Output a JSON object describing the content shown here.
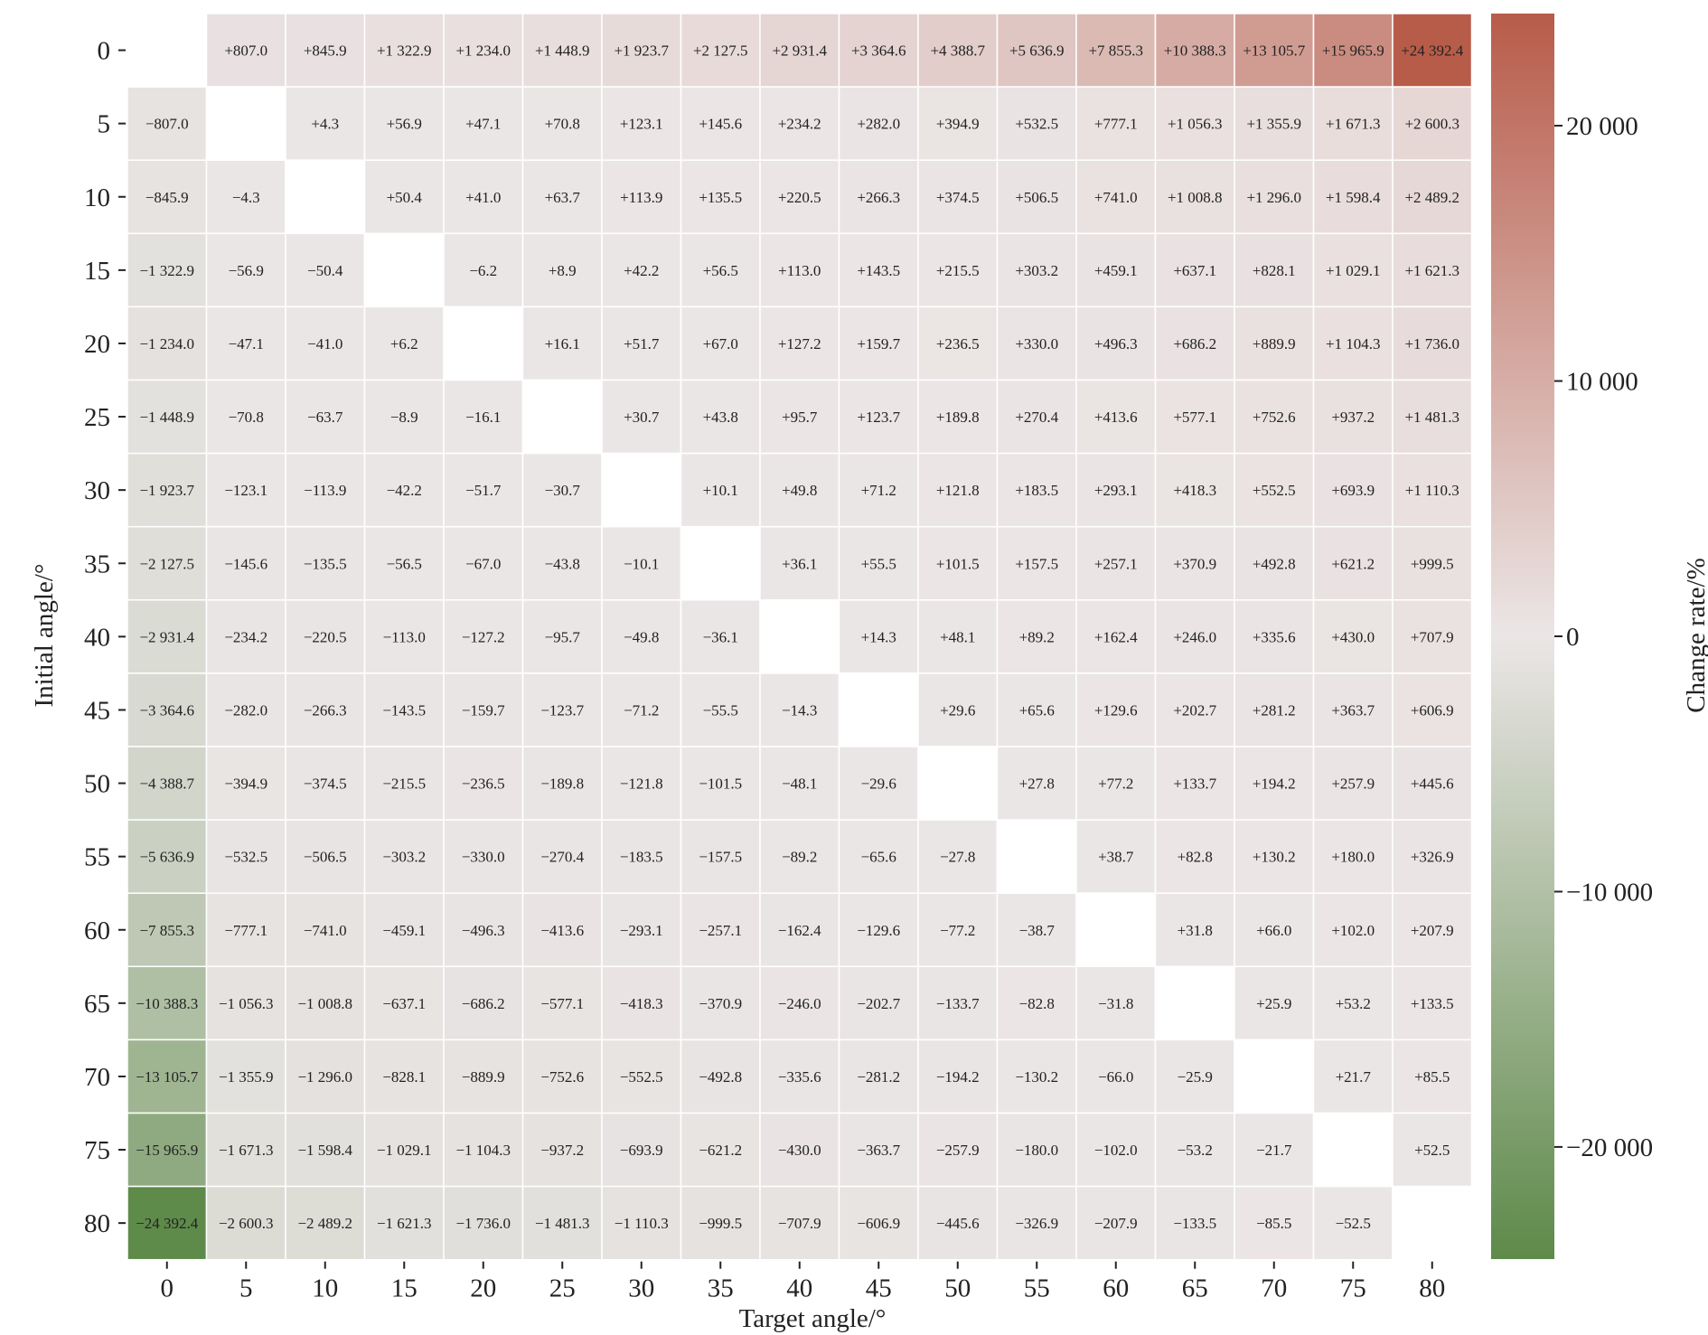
{
  "chart_data": {
    "type": "heatmap",
    "title": "",
    "xlabel": "Target angle/°",
    "ylabel": "Initial angle/°",
    "colorbar_label": "Change rate/%",
    "x_categories": [
      "0",
      "5",
      "10",
      "15",
      "20",
      "25",
      "30",
      "35",
      "40",
      "45",
      "50",
      "55",
      "60",
      "65",
      "70",
      "75",
      "80"
    ],
    "y_categories": [
      "0",
      "5",
      "10",
      "15",
      "20",
      "25",
      "30",
      "35",
      "40",
      "45",
      "50",
      "55",
      "60",
      "65",
      "70",
      "75",
      "80"
    ],
    "colorbar_ticks": [
      "20 000",
      "10 000",
      "0",
      "−10 000",
      "−20 000"
    ],
    "colorbar_tick_values": [
      20000,
      10000,
      0,
      -10000,
      -20000
    ],
    "vmin": -24392.4,
    "vmax": 24392.4,
    "colors": {
      "negative": "#5e8a4a",
      "neutral": "#ebe6e6",
      "positive": "#b85c4a"
    },
    "labels": [
      [
        "",
        "+807.0",
        "+845.9",
        "+1 322.9",
        "+1 234.0",
        "+1 448.9",
        "+1 923.7",
        "+2 127.5",
        "+2 931.4",
        "+3 364.6",
        "+4 388.7",
        "+5 636.9",
        "+7 855.3",
        "+10 388.3",
        "+13 105.7",
        "+15 965.9",
        "+24 392.4"
      ],
      [
        "−807.0",
        "",
        "+4.3",
        "+56.9",
        "+47.1",
        "+70.8",
        "+123.1",
        "+145.6",
        "+234.2",
        "+282.0",
        "+394.9",
        "+532.5",
        "+777.1",
        "+1 056.3",
        "+1 355.9",
        "+1 671.3",
        "+2 600.3"
      ],
      [
        "−845.9",
        "−4.3",
        "",
        "+50.4",
        "+41.0",
        "+63.7",
        "+113.9",
        "+135.5",
        "+220.5",
        "+266.3",
        "+374.5",
        "+506.5",
        "+741.0",
        "+1 008.8",
        "+1 296.0",
        "+1 598.4",
        "+2 489.2"
      ],
      [
        "−1 322.9",
        "−56.9",
        "−50.4",
        "",
        "−6.2",
        "+8.9",
        "+42.2",
        "+56.5",
        "+113.0",
        "+143.5",
        "+215.5",
        "+303.2",
        "+459.1",
        "+637.1",
        "+828.1",
        "+1 029.1",
        "+1 621.3"
      ],
      [
        "−1 234.0",
        "−47.1",
        "−41.0",
        "+6.2",
        "",
        "+16.1",
        "+51.7",
        "+67.0",
        "+127.2",
        "+159.7",
        "+236.5",
        "+330.0",
        "+496.3",
        "+686.2",
        "+889.9",
        "+1 104.3",
        "+1 736.0"
      ],
      [
        "−1 448.9",
        "−70.8",
        "−63.7",
        "−8.9",
        "−16.1",
        "",
        "+30.7",
        "+43.8",
        "+95.7",
        "+123.7",
        "+189.8",
        "+270.4",
        "+413.6",
        "+577.1",
        "+752.6",
        "+937.2",
        "+1 481.3"
      ],
      [
        "−1 923.7",
        "−123.1",
        "−113.9",
        "−42.2",
        "−51.7",
        "−30.7",
        "",
        "+10.1",
        "+49.8",
        "+71.2",
        "+121.8",
        "+183.5",
        "+293.1",
        "+418.3",
        "+552.5",
        "+693.9",
        "+1 110.3"
      ],
      [
        "−2 127.5",
        "−145.6",
        "−135.5",
        "−56.5",
        "−67.0",
        "−43.8",
        "−10.1",
        "",
        "+36.1",
        "+55.5",
        "+101.5",
        "+157.5",
        "+257.1",
        "+370.9",
        "+492.8",
        "+621.2",
        "+999.5"
      ],
      [
        "−2 931.4",
        "−234.2",
        "−220.5",
        "−113.0",
        "−127.2",
        "−95.7",
        "−49.8",
        "−36.1",
        "",
        "+14.3",
        "+48.1",
        "+89.2",
        "+162.4",
        "+246.0",
        "+335.6",
        "+430.0",
        "+707.9"
      ],
      [
        "−3 364.6",
        "−282.0",
        "−266.3",
        "−143.5",
        "−159.7",
        "−123.7",
        "−71.2",
        "−55.5",
        "−14.3",
        "",
        "+29.6",
        "+65.6",
        "+129.6",
        "+202.7",
        "+281.2",
        "+363.7",
        "+606.9"
      ],
      [
        "−4 388.7",
        "−394.9",
        "−374.5",
        "−215.5",
        "−236.5",
        "−189.8",
        "−121.8",
        "−101.5",
        "−48.1",
        "−29.6",
        "",
        "+27.8",
        "+77.2",
        "+133.7",
        "+194.2",
        "+257.9",
        "+445.6"
      ],
      [
        "−5 636.9",
        "−532.5",
        "−506.5",
        "−303.2",
        "−330.0",
        "−270.4",
        "−183.5",
        "−157.5",
        "−89.2",
        "−65.6",
        "−27.8",
        "",
        "+38.7",
        "+82.8",
        "+130.2",
        "+180.0",
        "+326.9"
      ],
      [
        "−7 855.3",
        "−777.1",
        "−741.0",
        "−459.1",
        "−496.3",
        "−413.6",
        "−293.1",
        "−257.1",
        "−162.4",
        "−129.6",
        "−77.2",
        "−38.7",
        "",
        "+31.8",
        "+66.0",
        "+102.0",
        "+207.9"
      ],
      [
        "−10 388.3",
        "−1 056.3",
        "−1 008.8",
        "−637.1",
        "−686.2",
        "−577.1",
        "−418.3",
        "−370.9",
        "−246.0",
        "−202.7",
        "−133.7",
        "−82.8",
        "−31.8",
        "",
        "+25.9",
        "+53.2",
        "+133.5"
      ],
      [
        "−13 105.7",
        "−1 355.9",
        "−1 296.0",
        "−828.1",
        "−889.9",
        "−752.6",
        "−552.5",
        "−492.8",
        "−335.6",
        "−281.2",
        "−194.2",
        "−130.2",
        "−66.0",
        "−25.9",
        "",
        "+21.7",
        "+85.5"
      ],
      [
        "−15 965.9",
        "−1 671.3",
        "−1 598.4",
        "−1 029.1",
        "−1 104.3",
        "−937.2",
        "−693.9",
        "−621.2",
        "−430.0",
        "−363.7",
        "−257.9",
        "−180.0",
        "−102.0",
        "−53.2",
        "−21.7",
        "",
        "+52.5"
      ],
      [
        "−24 392.4",
        "−2 600.3",
        "−2 489.2",
        "−1 621.3",
        "−1 736.0",
        "−1 481.3",
        "−1 110.3",
        "−999.5",
        "−707.9",
        "−606.9",
        "−445.6",
        "−326.9",
        "−207.9",
        "−133.5",
        "−85.5",
        "−52.5",
        ""
      ]
    ]
  }
}
